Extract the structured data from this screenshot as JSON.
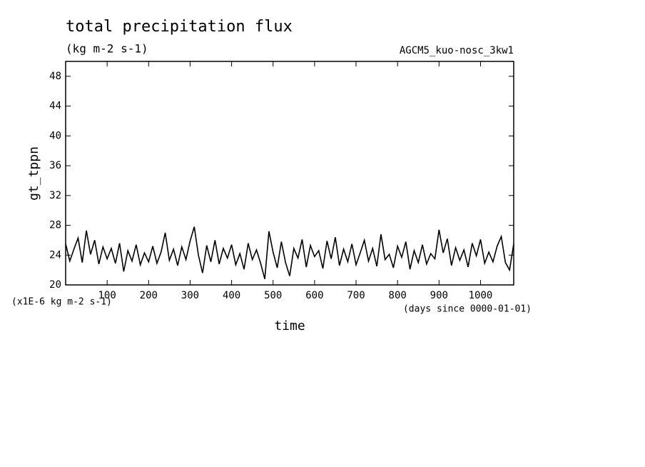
{
  "chart_data": {
    "type": "line",
    "title": "total precipitation flux",
    "subtitle": "(kg m-2 s-1)",
    "annotation": "AGCM5_kuo-nosc_3kw1",
    "y_label": "gt_tppn",
    "y_unit": "(x1E-6 kg m-2 s-1)",
    "x_label": "time",
    "x_unit": "(days since 0000-01-01)",
    "x": [
      0,
      10,
      20,
      30,
      40,
      50,
      60,
      70,
      80,
      90,
      100,
      110,
      120,
      130,
      140,
      150,
      160,
      170,
      180,
      190,
      200,
      210,
      220,
      230,
      240,
      250,
      260,
      270,
      280,
      290,
      300,
      310,
      320,
      330,
      340,
      350,
      360,
      370,
      380,
      390,
      400,
      410,
      420,
      430,
      440,
      450,
      460,
      470,
      480,
      490,
      500,
      510,
      520,
      530,
      540,
      550,
      560,
      570,
      580,
      590,
      600,
      610,
      620,
      630,
      640,
      650,
      660,
      670,
      680,
      690,
      700,
      710,
      720,
      730,
      740,
      750,
      760,
      770,
      780,
      790,
      800,
      810,
      820,
      830,
      840,
      850,
      860,
      870,
      880,
      890,
      900,
      910,
      920,
      930,
      940,
      950,
      960,
      970,
      980,
      990,
      1000,
      1010,
      1020,
      1030,
      1040,
      1050,
      1060,
      1070,
      1080
    ],
    "series": [
      {
        "color": "#000000",
        "values": [
          25.5,
          23.2,
          24.8,
          26.3,
          23.0,
          27.3,
          24.1,
          26.0,
          22.8,
          25.1,
          23.5,
          24.9,
          22.9,
          25.6,
          21.8,
          24.6,
          23.2,
          25.4,
          22.7,
          24.3,
          23.1,
          25.2,
          22.9,
          24.4,
          27.0,
          23.3,
          24.8,
          22.6,
          25.1,
          23.4,
          25.9,
          27.8,
          24.0,
          21.6,
          25.3,
          23.1,
          26.0,
          22.8,
          24.9,
          23.6,
          25.4,
          22.7,
          24.2,
          22.1,
          25.6,
          23.4,
          24.7,
          22.9,
          20.8,
          27.2,
          24.4,
          22.3,
          25.8,
          23.0,
          21.2,
          24.9,
          23.6,
          26.1,
          22.4,
          25.3,
          23.8,
          24.6,
          22.2,
          25.9,
          23.5,
          26.4,
          22.6,
          24.8,
          23.1,
          25.5,
          22.7,
          24.3,
          26.0,
          23.2,
          24.9,
          22.5,
          26.8,
          23.4,
          24.1,
          22.3,
          25.2,
          23.7,
          25.8,
          22.1,
          24.6,
          23.0,
          25.4,
          22.8,
          24.2,
          23.5,
          27.4,
          24.3,
          26.2,
          22.6,
          25.0,
          23.3,
          24.7,
          22.4,
          25.6,
          23.9,
          26.1,
          22.9,
          24.4,
          23.1,
          25.2,
          26.5,
          23.0,
          22.0,
          25.5
        ]
      }
    ],
    "xlim": [
      0,
      1080
    ],
    "ylim": [
      20,
      50
    ],
    "xticks": [
      100,
      200,
      300,
      400,
      500,
      600,
      700,
      800,
      900,
      1000
    ],
    "yticks": [
      20,
      24,
      28,
      32,
      36,
      40,
      44,
      48
    ]
  }
}
